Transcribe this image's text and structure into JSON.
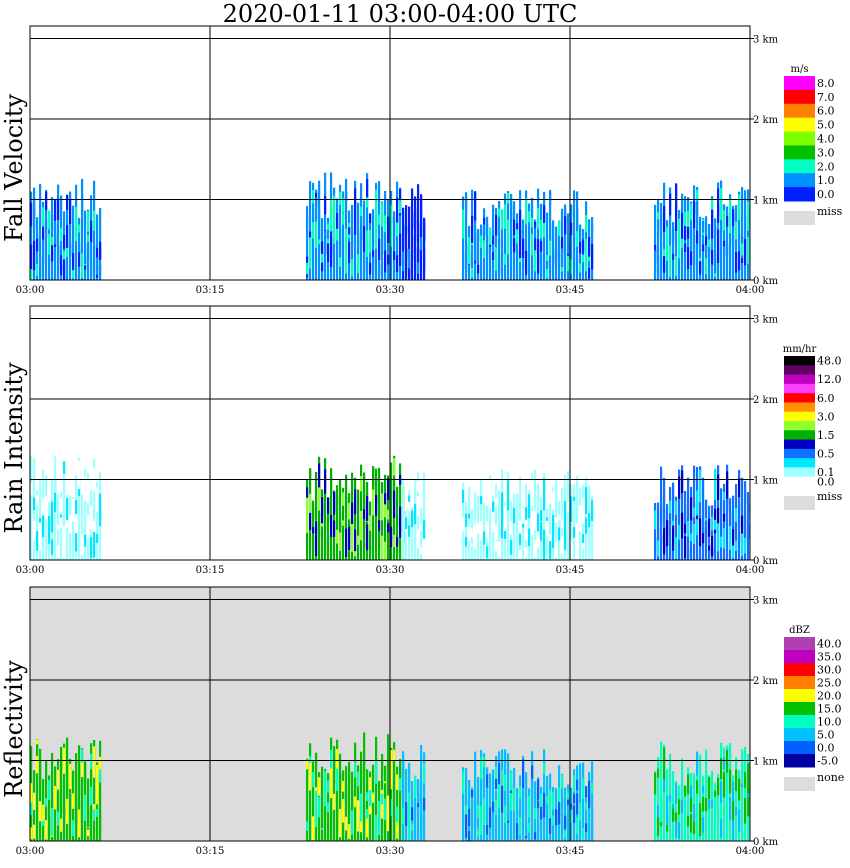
{
  "title": "2020-01-11   03:00-04:00 UTC",
  "x_ticks": [
    "03:00",
    "03:15",
    "03:30",
    "03:45",
    "04:00"
  ],
  "y_ticks": [
    "0 km",
    "1 km",
    "2 km",
    "3 km"
  ],
  "chart_data": [
    {
      "type": "heatmap",
      "ylabel": "Fall Velocity",
      "units": "m/s",
      "xlim": [
        "03:00",
        "04:00"
      ],
      "ylim_km": [
        0,
        3
      ],
      "legend": [
        {
          "label": "8.0",
          "color": "#ff00ff"
        },
        {
          "label": "7.0",
          "color": "#ff0000"
        },
        {
          "label": "6.0",
          "color": "#ff8000"
        },
        {
          "label": "5.0",
          "color": "#ffff00"
        },
        {
          "label": "4.0",
          "color": "#80ff00"
        },
        {
          "label": "3.0",
          "color": "#00c000"
        },
        {
          "label": "2.0",
          "color": "#00ffc0"
        },
        {
          "label": "1.0",
          "color": "#0090ff"
        },
        {
          "label": "0.0",
          "color": "#0020ff"
        }
      ],
      "missing_label": "miss",
      "missing_color": "#dcdcdc",
      "background": "#ffffff",
      "echo_periods": [
        {
          "start": "03:00",
          "end": "03:06",
          "top_km": 1.3,
          "dominant": "1.0"
        },
        {
          "start": "03:23",
          "end": "03:31",
          "top_km": 1.35,
          "dominant": "1.0"
        },
        {
          "start": "03:31",
          "end": "03:33",
          "top_km": 1.2,
          "dominant": "0.0"
        },
        {
          "start": "03:36",
          "end": "03:47",
          "top_km": 1.15,
          "dominant": "1.0"
        },
        {
          "start": "03:52",
          "end": "04:00",
          "top_km": 1.25,
          "dominant": "1.0"
        }
      ]
    },
    {
      "type": "heatmap",
      "ylabel": "Rain Intensity",
      "units": "mm/hr",
      "xlim": [
        "03:00",
        "04:00"
      ],
      "ylim_km": [
        0,
        3
      ],
      "legend": [
        {
          "label": "48.0",
          "color": "#000000"
        },
        {
          "label": "",
          "color": "#600060"
        },
        {
          "label": "12.0",
          "color": "#c000c0"
        },
        {
          "label": "",
          "color": "#ff40ff"
        },
        {
          "label": "6.0",
          "color": "#ff0000"
        },
        {
          "label": "",
          "color": "#ff9000"
        },
        {
          "label": "3.0",
          "color": "#ffff00"
        },
        {
          "label": "",
          "color": "#90ff30"
        },
        {
          "label": "1.5",
          "color": "#00b000"
        },
        {
          "label": "",
          "color": "#0000c0"
        },
        {
          "label": "0.5",
          "color": "#1070ff"
        },
        {
          "label": "",
          "color": "#00e8ff"
        },
        {
          "label": "0.1",
          "color": "#a0ffff"
        },
        {
          "label": "0.0",
          "color": "#ffffff"
        }
      ],
      "missing_label": "miss",
      "missing_color": "#dcdcdc",
      "background": "#ffffff",
      "echo_periods": [
        {
          "start": "03:00",
          "end": "03:06",
          "top_km": 1.3,
          "dominant": "0.1"
        },
        {
          "start": "03:23",
          "end": "03:31",
          "top_km": 1.3,
          "dominant": "1.5"
        },
        {
          "start": "03:31",
          "end": "03:33",
          "top_km": 1.1,
          "dominant": "0.1"
        },
        {
          "start": "03:36",
          "end": "03:47",
          "top_km": 1.15,
          "dominant": "0.1"
        },
        {
          "start": "03:52",
          "end": "04:00",
          "top_km": 1.2,
          "dominant": "0.5"
        }
      ]
    },
    {
      "type": "heatmap",
      "ylabel": "Reflectivity",
      "units": "dBZ",
      "xlim": [
        "03:00",
        "04:00"
      ],
      "ylim_km": [
        0,
        3
      ],
      "legend": [
        {
          "label": "40.0",
          "color": "#b040b0"
        },
        {
          "label": "35.0",
          "color": "#c000c0"
        },
        {
          "label": "30.0",
          "color": "#ff0000"
        },
        {
          "label": "25.0",
          "color": "#ff8000"
        },
        {
          "label": "20.0",
          "color": "#ffff00"
        },
        {
          "label": "15.0",
          "color": "#00c000"
        },
        {
          "label": "10.0",
          "color": "#00ffc0"
        },
        {
          "label": "5.0",
          "color": "#00c0ff"
        },
        {
          "label": "0.0",
          "color": "#0060ff"
        },
        {
          "label": "-5.0",
          "color": "#0000a0"
        }
      ],
      "missing_label": "none",
      "missing_color": "#dcdcdc",
      "background": "#dcdcdc",
      "echo_periods": [
        {
          "start": "03:00",
          "end": "03:06",
          "top_km": 1.3,
          "dominant": "15.0"
        },
        {
          "start": "03:23",
          "end": "03:31",
          "top_km": 1.35,
          "dominant": "15.0"
        },
        {
          "start": "03:31",
          "end": "03:33",
          "top_km": 1.2,
          "dominant": "5.0"
        },
        {
          "start": "03:36",
          "end": "03:47",
          "top_km": 1.15,
          "dominant": "5.0"
        },
        {
          "start": "03:52",
          "end": "04:00",
          "top_km": 1.25,
          "dominant": "10.0"
        }
      ]
    }
  ]
}
